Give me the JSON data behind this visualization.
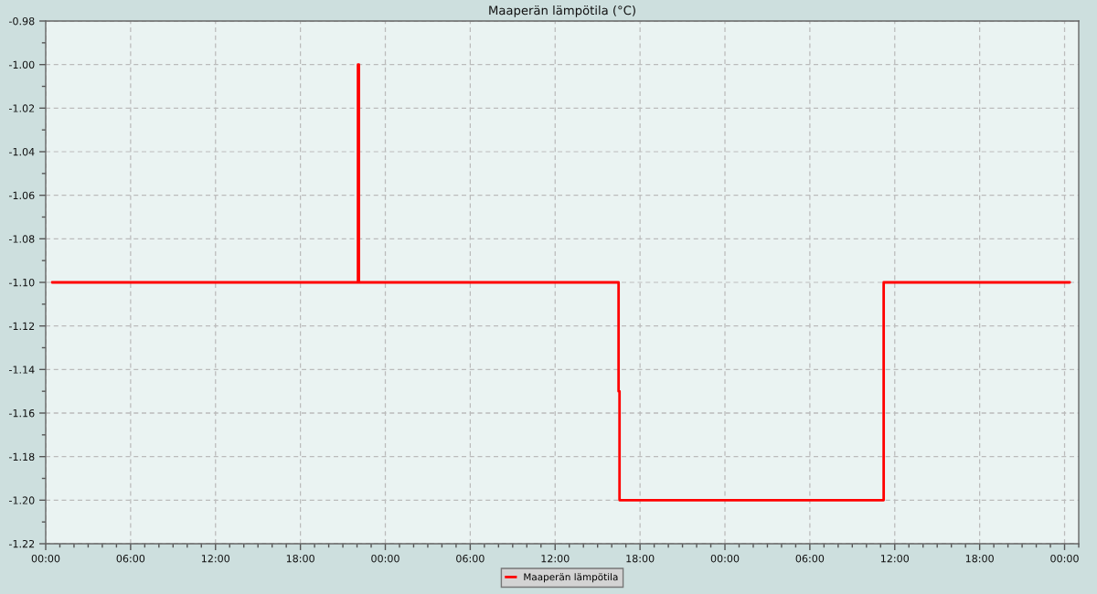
{
  "chart_data": {
    "type": "step",
    "title": "Maaperän lämpötila (°C)",
    "series": [
      {
        "name": "Maaperän lämpötila",
        "color": "#ff0000",
        "x": [
          "2000-01-01T00:27",
          "2000-01-01T22:04",
          "2000-01-01T22:08",
          "2000-01-02T16:29",
          "2000-01-02T16:33",
          "2000-01-03T11:13",
          "2000-01-04T00:22"
        ],
        "values": [
          -1.1,
          -1.0,
          -1.1,
          -1.15,
          -1.2,
          -1.1,
          -1.1
        ]
      }
    ],
    "xlim": [
      "2000-01-01T00:00",
      "2000-01-04T01:00"
    ],
    "xticks": [
      {
        "value": "2000-01-01T00:00",
        "label": "00:00"
      },
      {
        "value": "2000-01-01T01:00",
        "label": null
      },
      {
        "value": "2000-01-01T02:00",
        "label": null
      },
      {
        "value": "2000-01-01T03:00",
        "label": null
      },
      {
        "value": "2000-01-01T04:00",
        "label": null
      },
      {
        "value": "2000-01-01T05:00",
        "label": null
      },
      {
        "value": "2000-01-01T06:00",
        "label": "06:00"
      },
      {
        "value": "2000-01-01T07:00",
        "label": null
      },
      {
        "value": "2000-01-01T08:00",
        "label": null
      },
      {
        "value": "2000-01-01T09:00",
        "label": null
      },
      {
        "value": "2000-01-01T10:00",
        "label": null
      },
      {
        "value": "2000-01-01T11:00",
        "label": null
      },
      {
        "value": "2000-01-01T12:00",
        "label": "12:00"
      },
      {
        "value": "2000-01-01T13:00",
        "label": null
      },
      {
        "value": "2000-01-01T14:00",
        "label": null
      },
      {
        "value": "2000-01-01T15:00",
        "label": null
      },
      {
        "value": "2000-01-01T16:00",
        "label": null
      },
      {
        "value": "2000-01-01T17:00",
        "label": null
      },
      {
        "value": "2000-01-01T18:00",
        "label": "18:00"
      },
      {
        "value": "2000-01-01T19:00",
        "label": null
      },
      {
        "value": "2000-01-01T20:00",
        "label": null
      },
      {
        "value": "2000-01-01T21:00",
        "label": null
      },
      {
        "value": "2000-01-01T22:00",
        "label": null
      },
      {
        "value": "2000-01-01T23:00",
        "label": null
      },
      {
        "value": "2000-01-02T00:00",
        "label": "00:00"
      },
      {
        "value": "2000-01-02T01:00",
        "label": null
      },
      {
        "value": "2000-01-02T02:00",
        "label": null
      },
      {
        "value": "2000-01-02T03:00",
        "label": null
      },
      {
        "value": "2000-01-02T04:00",
        "label": null
      },
      {
        "value": "2000-01-02T05:00",
        "label": null
      },
      {
        "value": "2000-01-02T06:00",
        "label": "06:00"
      },
      {
        "value": "2000-01-02T07:00",
        "label": null
      },
      {
        "value": "2000-01-02T08:00",
        "label": null
      },
      {
        "value": "2000-01-02T09:00",
        "label": null
      },
      {
        "value": "2000-01-02T10:00",
        "label": null
      },
      {
        "value": "2000-01-02T11:00",
        "label": null
      },
      {
        "value": "2000-01-02T12:00",
        "label": "12:00"
      },
      {
        "value": "2000-01-02T13:00",
        "label": null
      },
      {
        "value": "2000-01-02T14:00",
        "label": null
      },
      {
        "value": "2000-01-02T15:00",
        "label": null
      },
      {
        "value": "2000-01-02T16:00",
        "label": null
      },
      {
        "value": "2000-01-02T17:00",
        "label": null
      },
      {
        "value": "2000-01-02T18:00",
        "label": "18:00"
      },
      {
        "value": "2000-01-02T19:00",
        "label": null
      },
      {
        "value": "2000-01-02T20:00",
        "label": null
      },
      {
        "value": "2000-01-02T21:00",
        "label": null
      },
      {
        "value": "2000-01-02T22:00",
        "label": null
      },
      {
        "value": "2000-01-02T23:00",
        "label": null
      },
      {
        "value": "2000-01-03T00:00",
        "label": "00:00"
      },
      {
        "value": "2000-01-03T01:00",
        "label": null
      },
      {
        "value": "2000-01-03T02:00",
        "label": null
      },
      {
        "value": "2000-01-03T03:00",
        "label": null
      },
      {
        "value": "2000-01-03T04:00",
        "label": null
      },
      {
        "value": "2000-01-03T05:00",
        "label": null
      },
      {
        "value": "2000-01-03T06:00",
        "label": "06:00"
      },
      {
        "value": "2000-01-03T07:00",
        "label": null
      },
      {
        "value": "2000-01-03T08:00",
        "label": null
      },
      {
        "value": "2000-01-03T09:00",
        "label": null
      },
      {
        "value": "2000-01-03T10:00",
        "label": null
      },
      {
        "value": "2000-01-03T11:00",
        "label": null
      },
      {
        "value": "2000-01-03T12:00",
        "label": "12:00"
      },
      {
        "value": "2000-01-03T13:00",
        "label": null
      },
      {
        "value": "2000-01-03T14:00",
        "label": null
      },
      {
        "value": "2000-01-03T15:00",
        "label": null
      },
      {
        "value": "2000-01-03T16:00",
        "label": null
      },
      {
        "value": "2000-01-03T17:00",
        "label": null
      },
      {
        "value": "2000-01-03T18:00",
        "label": "18:00"
      },
      {
        "value": "2000-01-03T19:00",
        "label": null
      },
      {
        "value": "2000-01-03T20:00",
        "label": null
      },
      {
        "value": "2000-01-03T21:00",
        "label": null
      },
      {
        "value": "2000-01-03T22:00",
        "label": null
      },
      {
        "value": "2000-01-03T23:00",
        "label": null
      },
      {
        "value": "2000-01-04T00:00",
        "label": "00:00"
      },
      {
        "value": "2000-01-04T01:00",
        "label": null
      }
    ],
    "ylim": [
      -1.22,
      -0.98
    ],
    "yticks": [
      {
        "value": -1.22,
        "label": "-1.22"
      },
      {
        "value": -1.21,
        "label": null
      },
      {
        "value": -1.2,
        "label": "-1.20"
      },
      {
        "value": -1.19,
        "label": null
      },
      {
        "value": -1.18,
        "label": "-1.18"
      },
      {
        "value": -1.17,
        "label": null
      },
      {
        "value": -1.16,
        "label": "-1.16"
      },
      {
        "value": -1.15,
        "label": null
      },
      {
        "value": -1.14,
        "label": "-1.14"
      },
      {
        "value": -1.13,
        "label": null
      },
      {
        "value": -1.12,
        "label": "-1.12"
      },
      {
        "value": -1.11,
        "label": null
      },
      {
        "value": -1.1,
        "label": "-1.10"
      },
      {
        "value": -1.09,
        "label": null
      },
      {
        "value": -1.08,
        "label": "-1.08"
      },
      {
        "value": -1.07,
        "label": null
      },
      {
        "value": -1.06,
        "label": "-1.06"
      },
      {
        "value": -1.05,
        "label": null
      },
      {
        "value": -1.04,
        "label": "-1.04"
      },
      {
        "value": -1.03,
        "label": null
      },
      {
        "value": -1.02,
        "label": "-1.02"
      },
      {
        "value": -1.01,
        "label": null
      },
      {
        "value": -1.0,
        "label": "-1.00"
      },
      {
        "value": -0.99,
        "label": null
      },
      {
        "value": -0.98,
        "label": "-0.98"
      }
    ],
    "grid": true,
    "legend": "bottom"
  }
}
